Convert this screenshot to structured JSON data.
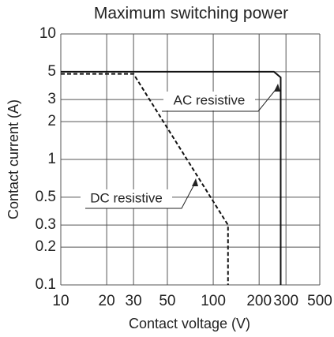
{
  "chart_data": {
    "type": "line",
    "title": "Maximum switching power",
    "xlabel": "Contact voltage (V)",
    "ylabel": "Contact current (A)",
    "xscale": "log",
    "yscale": "log",
    "xlim": [
      10,
      500
    ],
    "ylim": [
      0.1,
      10
    ],
    "xticks": [
      10,
      20,
      30,
      50,
      100,
      200,
      300,
      500
    ],
    "yticks": [
      0.1,
      0.2,
      0.3,
      0.5,
      1,
      2,
      3,
      5,
      10
    ],
    "grid": true,
    "series": [
      {
        "name": "AC resistive",
        "color": "#111111",
        "dash": false,
        "x": [
          10,
          250,
          277,
          277
        ],
        "values": [
          5,
          5,
          4.5,
          0.1
        ]
      },
      {
        "name": "DC resistive",
        "color": "#111111",
        "dash": true,
        "x": [
          10,
          30,
          125,
          125
        ],
        "values": [
          4.8,
          4.8,
          0.3,
          0.1
        ]
      }
    ]
  }
}
